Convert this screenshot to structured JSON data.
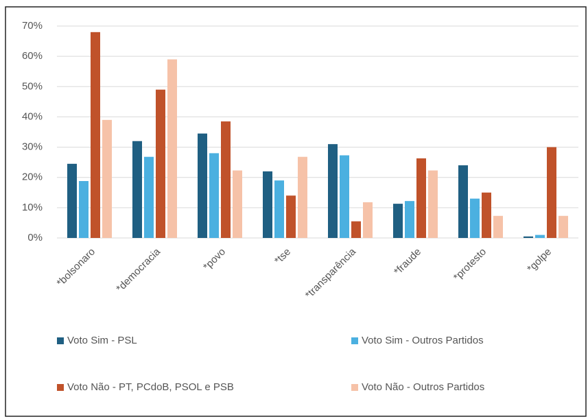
{
  "chart_data": {
    "type": "bar",
    "categories": [
      "*bolsonaro",
      "*democracia",
      "*povo",
      "*tse",
      "*transparência",
      "*fraude",
      "*protesto",
      "*golpe"
    ],
    "series": [
      {
        "name": "Voto Sim - PSL",
        "color": "#1f5f82",
        "values": [
          24.5,
          32,
          34.5,
          22,
          31,
          11.3,
          24,
          0.5
        ]
      },
      {
        "name": "Voto Sim - Outros Partidos",
        "color": "#4bb0e0",
        "values": [
          18.8,
          26.8,
          28,
          19,
          27.3,
          12.2,
          13,
          1
        ]
      },
      {
        "name": "Voto Não - PT, PCdoB, PSOL e PSB",
        "color": "#c0522a",
        "values": [
          68,
          49,
          38.5,
          14,
          5.5,
          26.3,
          15,
          30
        ]
      },
      {
        "name": "Voto Não - Outros Partidos",
        "color": "#f6c2a8",
        "values": [
          39,
          59,
          22.3,
          26.8,
          11.8,
          22.3,
          7.3,
          7.3
        ]
      }
    ],
    "ylim": [
      0,
      70
    ],
    "yticks": [
      {
        "value": 0,
        "label": "0%"
      },
      {
        "value": 10,
        "label": "10%"
      },
      {
        "value": 20,
        "label": "20%"
      },
      {
        "value": 30,
        "label": "30%"
      },
      {
        "value": 40,
        "label": "40%"
      },
      {
        "value": 50,
        "label": "50%"
      },
      {
        "value": 60,
        "label": "60%"
      },
      {
        "value": 70,
        "label": "70%"
      }
    ],
    "grid": true,
    "legend": "bottom"
  }
}
